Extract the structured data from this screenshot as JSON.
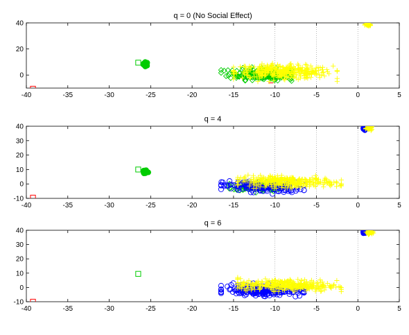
{
  "chart_data": [
    {
      "type": "scatter",
      "title": "q = 0 (No Social Effect)",
      "xlim": [
        -40,
        5
      ],
      "ylim": [
        -10,
        40
      ],
      "xticks": [
        -40,
        -35,
        -30,
        -25,
        -20,
        -15,
        -10,
        -5,
        0,
        5
      ],
      "yticks": [
        0,
        20,
        40
      ],
      "grid": "dotted vertical at x=-10, -5, 0",
      "series": [
        {
          "color": "#ff0000",
          "marker": "square",
          "points": [
            [
              -39.2,
              -10.5
            ]
          ]
        },
        {
          "color": "#ff0000",
          "marker": "dash",
          "points": [
            [
              -37.5,
              -10.5
            ],
            [
              -10.5,
              -6.0
            ]
          ]
        },
        {
          "color": "#00cc00",
          "marker": "square",
          "points": [
            [
              -26.5,
              9.5
            ]
          ]
        },
        {
          "color": "#00cc00",
          "marker": "cluster-filled",
          "center": [
            -25.6,
            8.5
          ],
          "spread": [
            0.3,
            1.5
          ],
          "count": 30
        },
        {
          "color": "#00cc00",
          "marker": "diamond",
          "cloud": {
            "x": [
              -16.5,
              -8.0
            ],
            "y": [
              -6,
              6
            ],
            "center": [
              -11.5,
              0.5
            ],
            "count": 220
          }
        },
        {
          "color": "#ffff00",
          "marker": "plus",
          "cloud": {
            "x": [
              -15.0,
              -2.5
            ],
            "y": [
              -5,
              9
            ],
            "center": [
              -9.0,
              2.5
            ],
            "count": 330
          }
        },
        {
          "color": "#ffff00",
          "marker": "plus",
          "cluster": {
            "center": [
              1.2,
              38.5
            ],
            "spread": [
              0.35,
              1.2
            ],
            "count": 45
          }
        }
      ]
    },
    {
      "type": "scatter",
      "title": "q = 4",
      "xlim": [
        -40,
        5
      ],
      "ylim": [
        -10,
        40
      ],
      "xticks": [
        -40,
        -35,
        -30,
        -25,
        -20,
        -15,
        -10,
        -5,
        0,
        5
      ],
      "yticks": [
        -10,
        0,
        10,
        20,
        30,
        40
      ],
      "grid": "dotted vertical at x=-10, -5, 0",
      "series": [
        {
          "color": "#ff0000",
          "marker": "square",
          "points": [
            [
              -39.2,
              -9.5
            ]
          ]
        },
        {
          "color": "#00cc00",
          "marker": "square",
          "points": [
            [
              -26.5,
              10.0
            ]
          ]
        },
        {
          "color": "#00cc00",
          "marker": "cluster-filled",
          "center": [
            -25.6,
            8.5
          ],
          "spread": [
            0.3,
            1.5
          ],
          "count": 30
        },
        {
          "color": "#00cc00",
          "marker": "diamond",
          "cloud": {
            "x": [
              -15.5,
              -9.0
            ],
            "y": [
              -6,
              2
            ],
            "center": [
              -12.0,
              -2.0
            ],
            "count": 120
          }
        },
        {
          "color": "#0000ff",
          "marker": "circle",
          "cloud": {
            "x": [
              -16.5,
              -6.5
            ],
            "y": [
              -7,
              3
            ],
            "center": [
              -11.5,
              -2.0
            ],
            "count": 160
          }
        },
        {
          "color": "#ffff00",
          "marker": "plus",
          "cloud": {
            "x": [
              -14.5,
              -2.0
            ],
            "y": [
              -3,
              7
            ],
            "center": [
              -8.5,
              1.5
            ],
            "count": 300
          }
        },
        {
          "color": "#0000ff",
          "marker": "cluster-filled",
          "center": [
            0.8,
            38.5
          ],
          "spread": [
            0.25,
            1.0
          ],
          "count": 20
        },
        {
          "color": "#ffff00",
          "marker": "plus",
          "cluster": {
            "center": [
              1.4,
              38.5
            ],
            "spread": [
              0.35,
              1.2
            ],
            "count": 40
          }
        }
      ]
    },
    {
      "type": "scatter",
      "title": "q = 6",
      "xlim": [
        -40,
        5
      ],
      "ylim": [
        -10,
        40
      ],
      "xticks": [
        -40,
        -35,
        -30,
        -25,
        -20,
        -15,
        -10,
        -5,
        0,
        5
      ],
      "yticks": [
        -10,
        0,
        10,
        20,
        30,
        40
      ],
      "grid": "dotted vertical at x=-10, -5, 0",
      "series": [
        {
          "color": "#ff0000",
          "marker": "square",
          "points": [
            [
              -39.2,
              -10.0
            ]
          ]
        },
        {
          "color": "#00cc00",
          "marker": "square",
          "points": [
            [
              -26.5,
              9.5
            ]
          ]
        },
        {
          "color": "#0000ff",
          "marker": "circle",
          "cloud": {
            "x": [
              -16.5,
              -6.5
            ],
            "y": [
              -7,
              3
            ],
            "center": [
              -11.5,
              -2.0
            ],
            "count": 220
          }
        },
        {
          "color": "#ffff00",
          "marker": "plus",
          "cloud": {
            "x": [
              -14.5,
              -2.0
            ],
            "y": [
              -3,
              8
            ],
            "center": [
              -8.5,
              1.5
            ],
            "count": 320
          }
        },
        {
          "color": "#0000ff",
          "marker": "cluster-filled",
          "center": [
            0.8,
            39.0
          ],
          "spread": [
            0.25,
            1.0
          ],
          "count": 20
        },
        {
          "color": "#ffff00",
          "marker": "plus",
          "cluster": {
            "center": [
              1.4,
              38.5
            ],
            "spread": [
              0.35,
              1.2
            ],
            "count": 40
          }
        }
      ]
    }
  ]
}
